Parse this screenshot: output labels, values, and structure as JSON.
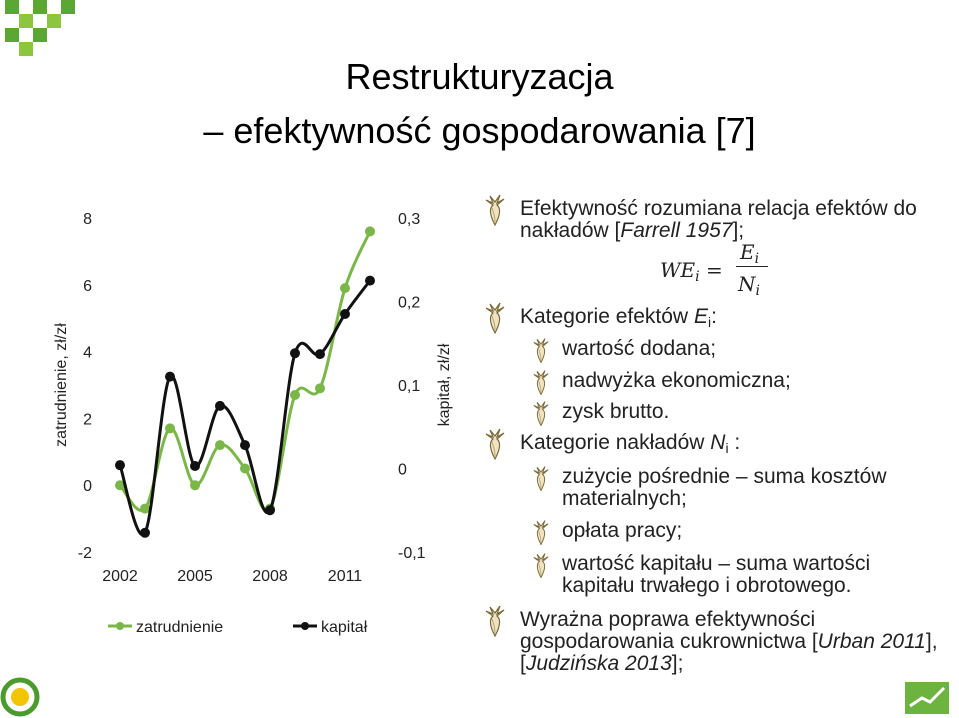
{
  "title": [
    "Restrukturyzacja",
    "– efektywność gospodarowania [7]"
  ],
  "chart_data": {
    "type": "line",
    "x": [
      2002,
      2003,
      2004,
      2005,
      2006,
      2007,
      2008,
      2009,
      2010,
      2011,
      2012
    ],
    "xlim": [
      2002,
      2012
    ],
    "xticks": [
      2002,
      2005,
      2008,
      2011
    ],
    "ylim": [
      -2,
      8
    ],
    "yticks": [
      -2,
      0,
      2,
      4,
      6,
      8
    ],
    "y2lim": [
      -0.1,
      0.3
    ],
    "y2ticks": [
      {
        "value": -0.1,
        "label": "-0,1"
      },
      0,
      {
        "value": 0.1,
        "label": "0,1"
      },
      {
        "value": 0.2,
        "label": "0,2"
      },
      {
        "value": 0.3,
        "label": "0,3"
      }
    ],
    "ylabel": "zatrudnienie, zł/zł",
    "y2label": "kapitał, zł/zł",
    "legend": "bottom",
    "smooth": true,
    "series": [
      {
        "name": "zatrudnienie",
        "color": "#7ab648",
        "values": [
          0.0,
          -0.7,
          1.7,
          0.0,
          1.2,
          0.5,
          -0.7,
          2.7,
          2.9,
          5.9,
          7.6
        ]
      },
      {
        "name": "kapitał",
        "color": "#111111",
        "axis": "y2",
        "values": [
          0.004,
          -0.077,
          0.11,
          0.003,
          0.075,
          0.028,
          -0.05,
          0.138,
          0.137,
          0.185,
          0.225
        ]
      }
    ]
  },
  "formula": {
    "lhs": "WE",
    "lhs_sub": "i",
    "eq": "=",
    "num": "E",
    "num_sub": "i",
    "den": "N",
    "den_sub": "i"
  },
  "bullets": [
    {
      "level": 1,
      "segments": [
        {
          "text": "Efektywność rozumiana relacja efektów do nakładów ["
        },
        {
          "text": "Farrell 1957",
          "style": "italic"
        },
        {
          "text": "];"
        }
      ]
    },
    {
      "level": 1,
      "segments": [
        {
          "text": "Kategorie efektów "
        },
        {
          "text": "E",
          "style": "italic"
        },
        {
          "text": "i",
          "style": "sub"
        },
        {
          "text": ":"
        }
      ]
    },
    {
      "level": 2,
      "segments": [
        {
          "text": "wartość dodana;"
        }
      ]
    },
    {
      "level": 2,
      "segments": [
        {
          "text": "nadwyżka ekonomiczna;"
        }
      ]
    },
    {
      "level": 2,
      "segments": [
        {
          "text": "zysk brutto."
        }
      ]
    },
    {
      "level": 1,
      "segments": [
        {
          "text": "Kategorie nakładów "
        },
        {
          "text": "N",
          "style": "italic"
        },
        {
          "text": "i",
          "style": "sub"
        },
        {
          "text": " :"
        }
      ]
    },
    {
      "level": 2,
      "segments": [
        {
          "text": "zużycie pośrednie – suma kosztów materialnych;"
        }
      ]
    },
    {
      "level": 2,
      "segments": [
        {
          "text": "opłata pracy;"
        }
      ]
    },
    {
      "level": 2,
      "segments": [
        {
          "text": "wartość kapitału – suma wartości kapitału  trwałego i obrotowego."
        }
      ]
    },
    {
      "level": 1,
      "segments": [
        {
          "text": "Wyrażna poprawa efektywności gospodarowania  cukrownictwa ["
        },
        {
          "text": "Urban 2011",
          "style": "italic"
        },
        {
          "text": "], ["
        },
        {
          "text": "Judzińska 2013",
          "style": "italic"
        },
        {
          "text": "];"
        }
      ]
    }
  ]
}
